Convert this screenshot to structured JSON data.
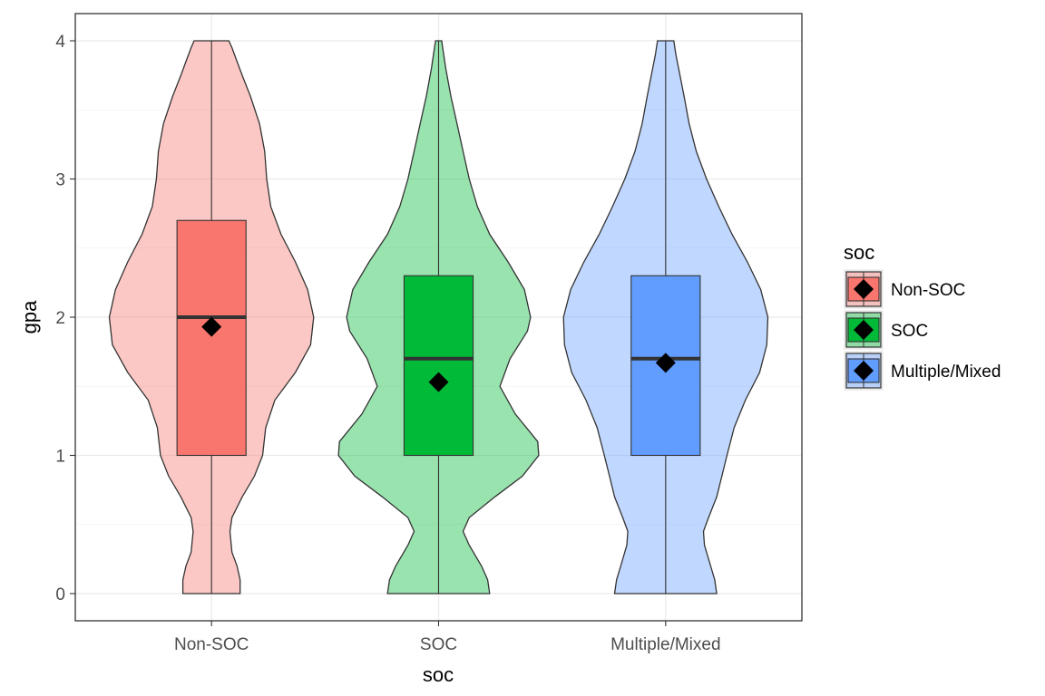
{
  "chart_data": {
    "type": "violin",
    "title": "",
    "xlabel": "soc",
    "ylabel": "gpa",
    "ylim": [
      0,
      4
    ],
    "yticks": [
      0,
      1,
      2,
      3,
      4
    ],
    "grid": true,
    "legend": {
      "title": "soc",
      "position": "right"
    },
    "categories": [
      "Non-SOC",
      "SOC",
      "Multiple/Mixed"
    ],
    "colors": [
      "#f8766d",
      "#00ba38",
      "#619cff"
    ],
    "series": [
      {
        "name": "Non-SOC",
        "box": {
          "min": 0,
          "q1": 1.0,
          "median": 2.0,
          "q3": 2.7,
          "max": 4.0
        },
        "mean": 1.93,
        "density": [
          [
            0.0,
            0.28
          ],
          [
            0.1,
            0.28
          ],
          [
            0.2,
            0.25
          ],
          [
            0.3,
            0.2
          ],
          [
            0.45,
            0.18
          ],
          [
            0.55,
            0.2
          ],
          [
            0.7,
            0.3
          ],
          [
            0.85,
            0.42
          ],
          [
            1.0,
            0.5
          ],
          [
            1.2,
            0.53
          ],
          [
            1.4,
            0.62
          ],
          [
            1.6,
            0.82
          ],
          [
            1.8,
            0.97
          ],
          [
            2.0,
            1.0
          ],
          [
            2.2,
            0.94
          ],
          [
            2.4,
            0.82
          ],
          [
            2.6,
            0.68
          ],
          [
            2.8,
            0.58
          ],
          [
            3.0,
            0.54
          ],
          [
            3.2,
            0.52
          ],
          [
            3.4,
            0.47
          ],
          [
            3.6,
            0.38
          ],
          [
            3.75,
            0.3
          ],
          [
            3.85,
            0.25
          ],
          [
            3.95,
            0.2
          ],
          [
            4.0,
            0.17
          ]
        ]
      },
      {
        "name": "SOC",
        "box": {
          "min": 0,
          "q1": 1.0,
          "median": 1.7,
          "q3": 2.3,
          "max": 4.0
        },
        "mean": 1.53,
        "density": [
          [
            0.0,
            0.5
          ],
          [
            0.1,
            0.48
          ],
          [
            0.2,
            0.42
          ],
          [
            0.35,
            0.3
          ],
          [
            0.45,
            0.24
          ],
          [
            0.55,
            0.3
          ],
          [
            0.7,
            0.55
          ],
          [
            0.85,
            0.82
          ],
          [
            1.0,
            0.98
          ],
          [
            1.1,
            0.97
          ],
          [
            1.3,
            0.75
          ],
          [
            1.5,
            0.6
          ],
          [
            1.7,
            0.7
          ],
          [
            1.9,
            0.87
          ],
          [
            2.0,
            0.9
          ],
          [
            2.2,
            0.84
          ],
          [
            2.4,
            0.68
          ],
          [
            2.6,
            0.5
          ],
          [
            2.8,
            0.38
          ],
          [
            3.0,
            0.3
          ],
          [
            3.2,
            0.24
          ],
          [
            3.4,
            0.18
          ],
          [
            3.6,
            0.12
          ],
          [
            3.8,
            0.07
          ],
          [
            3.95,
            0.04
          ],
          [
            4.0,
            0.03
          ]
        ]
      },
      {
        "name": "Multiple/Mixed",
        "box": {
          "min": 0,
          "q1": 1.0,
          "median": 1.7,
          "q3": 2.3,
          "max": 4.0
        },
        "mean": 1.67,
        "density": [
          [
            0.0,
            0.5
          ],
          [
            0.1,
            0.48
          ],
          [
            0.2,
            0.44
          ],
          [
            0.35,
            0.38
          ],
          [
            0.45,
            0.37
          ],
          [
            0.55,
            0.42
          ],
          [
            0.7,
            0.5
          ],
          [
            0.85,
            0.55
          ],
          [
            1.0,
            0.6
          ],
          [
            1.2,
            0.67
          ],
          [
            1.4,
            0.78
          ],
          [
            1.6,
            0.92
          ],
          [
            1.8,
            0.99
          ],
          [
            2.0,
            1.0
          ],
          [
            2.2,
            0.93
          ],
          [
            2.4,
            0.8
          ],
          [
            2.6,
            0.65
          ],
          [
            2.8,
            0.52
          ],
          [
            3.0,
            0.4
          ],
          [
            3.2,
            0.3
          ],
          [
            3.4,
            0.23
          ],
          [
            3.6,
            0.18
          ],
          [
            3.75,
            0.14
          ],
          [
            3.9,
            0.1
          ],
          [
            4.0,
            0.08
          ]
        ]
      }
    ]
  }
}
